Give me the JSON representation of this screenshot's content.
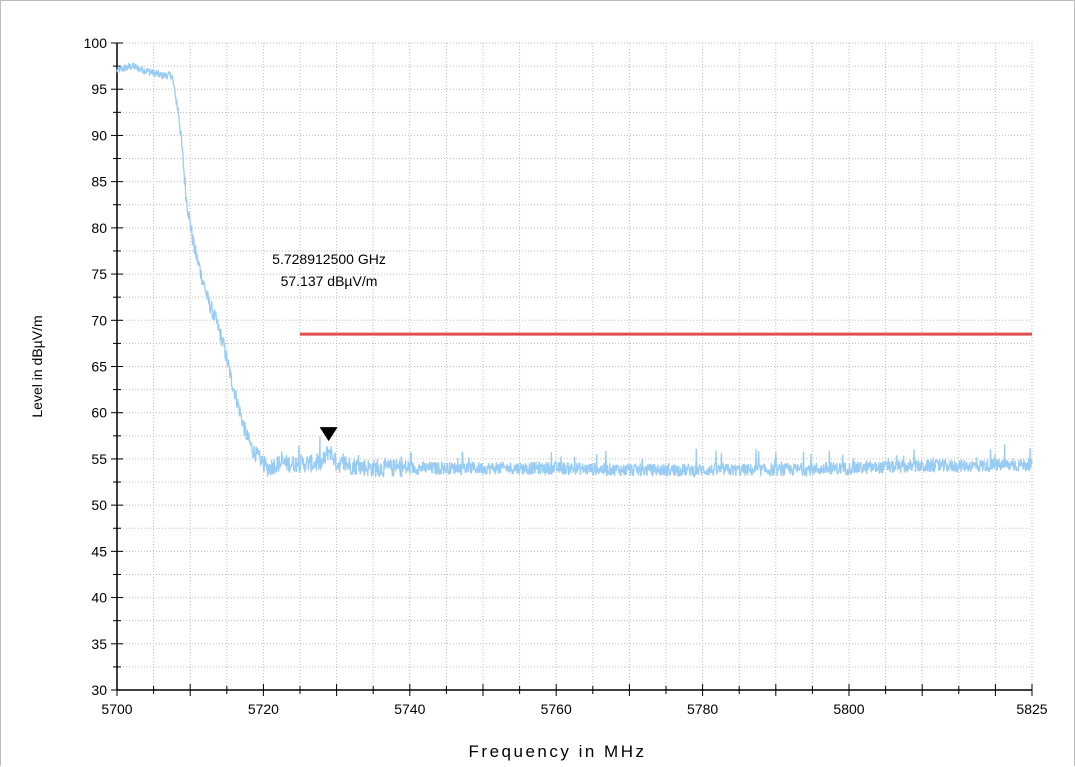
{
  "chart_data": {
    "type": "line",
    "xlabel": "Frequency in MHz",
    "ylabel": "Level in dBµV/m",
    "xlim": [
      5700,
      5825
    ],
    "ylim": [
      30,
      100
    ],
    "x_ticks": [
      5700,
      5720,
      5740,
      5760,
      5780,
      5800,
      5825
    ],
    "y_ticks": [
      30,
      35,
      40,
      45,
      50,
      55,
      60,
      65,
      70,
      75,
      80,
      85,
      90,
      95,
      100
    ],
    "grid": true,
    "series": [
      {
        "color": "#99ccf5",
        "x": [
          5700,
          5702,
          5704,
          5706,
          5707.5,
          5708.5,
          5709.5,
          5710.5,
          5711.5,
          5712.5,
          5713.5,
          5714.5,
          5715.5,
          5716.5,
          5717.5,
          5718.5,
          5719.5,
          5720.5,
          5722,
          5725,
          5728,
          5729,
          5730,
          5735,
          5740,
          5750,
          5760,
          5770,
          5780,
          5790,
          5800,
          5810,
          5820,
          5825
        ],
        "y": [
          97,
          97.5,
          97,
          96.5,
          96.5,
          92,
          83,
          78,
          75,
          72,
          70,
          67.5,
          64,
          61,
          58,
          56,
          55,
          54,
          54.5,
          54.5,
          54.5,
          56,
          54.5,
          54,
          54,
          54,
          54,
          53.8,
          53.8,
          53.8,
          54,
          54.2,
          54.3,
          54.4
        ]
      },
      {
        "color": "#e05050",
        "x": [
          5725,
          5825
        ],
        "y": [
          68.5,
          68.5
        ]
      }
    ],
    "marker": {
      "x": 5728.9125,
      "y": 57.137,
      "label_freq": "5.728912500 GHz",
      "label_level": "57.137 dBµV/m"
    }
  }
}
